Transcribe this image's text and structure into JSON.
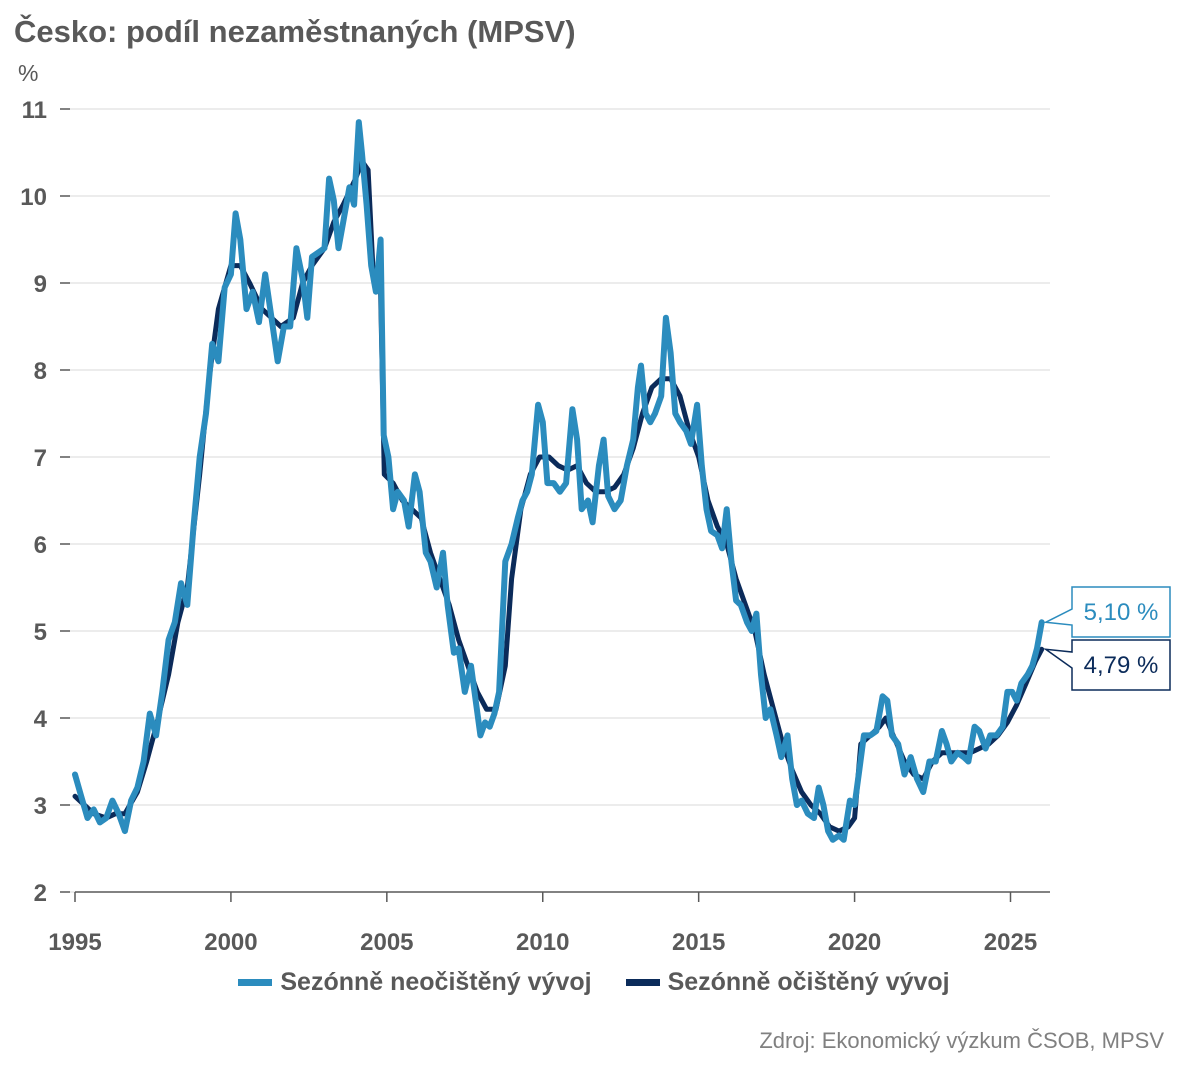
{
  "title": "Česko: podíl nezaměstnaných (MPSV)",
  "unit": "%",
  "source": "Zdroj: Ekonomický výzkum ČSOB, MPSV",
  "colors": {
    "unadjusted": "#2B8CBE",
    "adjusted": "#0B2B5A",
    "grid": "#D9D9D9",
    "axis": "#595959"
  },
  "chart_data": {
    "type": "line",
    "title": "Česko: podíl nezaměstnaných (MPSV)",
    "ylabel": "%",
    "xlabel": "",
    "ylim": [
      2,
      11
    ],
    "xlim": [
      1995,
      2026.2
    ],
    "yticks": [
      2,
      3,
      4,
      5,
      6,
      7,
      8,
      9,
      10,
      11
    ],
    "xticks": [
      1995,
      2000,
      2005,
      2010,
      2015,
      2020,
      2025
    ],
    "grid": true,
    "legend": "bottom",
    "series": [
      {
        "name": "Sezónně neočištěný vývoj",
        "color": "#2B8CBE",
        "points": [
          [
            1995.0,
            3.35
          ],
          [
            1995.2,
            3.1
          ],
          [
            1995.4,
            2.85
          ],
          [
            1995.6,
            2.95
          ],
          [
            1995.8,
            2.8
          ],
          [
            1996.0,
            2.85
          ],
          [
            1996.2,
            3.05
          ],
          [
            1996.4,
            2.9
          ],
          [
            1996.6,
            2.7
          ],
          [
            1996.8,
            3.05
          ],
          [
            1997.0,
            3.2
          ],
          [
            1997.2,
            3.5
          ],
          [
            1997.4,
            4.05
          ],
          [
            1997.6,
            3.8
          ],
          [
            1997.8,
            4.3
          ],
          [
            1998.0,
            4.9
          ],
          [
            1998.2,
            5.1
          ],
          [
            1998.4,
            5.55
          ],
          [
            1998.6,
            5.3
          ],
          [
            1998.8,
            6.2
          ],
          [
            1999.0,
            7.0
          ],
          [
            1999.2,
            7.5
          ],
          [
            1999.4,
            8.3
          ],
          [
            1999.6,
            8.1
          ],
          [
            1999.8,
            8.95
          ],
          [
            2000.0,
            9.1
          ],
          [
            2000.15,
            9.8
          ],
          [
            2000.3,
            9.5
          ],
          [
            2000.5,
            8.7
          ],
          [
            2000.7,
            8.9
          ],
          [
            2000.9,
            8.55
          ],
          [
            2001.1,
            9.1
          ],
          [
            2001.3,
            8.6
          ],
          [
            2001.5,
            8.1
          ],
          [
            2001.7,
            8.5
          ],
          [
            2001.9,
            8.5
          ],
          [
            2002.1,
            9.4
          ],
          [
            2002.3,
            9.05
          ],
          [
            2002.45,
            8.6
          ],
          [
            2002.6,
            9.3
          ],
          [
            2002.8,
            9.35
          ],
          [
            2003.0,
            9.4
          ],
          [
            2003.15,
            10.2
          ],
          [
            2003.3,
            9.95
          ],
          [
            2003.45,
            9.4
          ],
          [
            2003.6,
            9.7
          ],
          [
            2003.8,
            10.1
          ],
          [
            2003.95,
            9.9
          ],
          [
            2004.1,
            10.85
          ],
          [
            2004.2,
            10.5
          ],
          [
            2004.35,
            9.9
          ],
          [
            2004.5,
            9.2
          ],
          [
            2004.65,
            8.9
          ],
          [
            2004.8,
            9.5
          ],
          [
            2004.9,
            7.25
          ],
          [
            2005.05,
            7.0
          ],
          [
            2005.2,
            6.4
          ],
          [
            2005.35,
            6.6
          ],
          [
            2005.55,
            6.5
          ],
          [
            2005.7,
            6.2
          ],
          [
            2005.9,
            6.8
          ],
          [
            2006.05,
            6.6
          ],
          [
            2006.25,
            5.9
          ],
          [
            2006.4,
            5.8
          ],
          [
            2006.6,
            5.5
          ],
          [
            2006.8,
            5.9
          ],
          [
            2006.95,
            5.3
          ],
          [
            2007.15,
            4.75
          ],
          [
            2007.3,
            4.8
          ],
          [
            2007.5,
            4.3
          ],
          [
            2007.7,
            4.6
          ],
          [
            2007.85,
            4.2
          ],
          [
            2008.0,
            3.8
          ],
          [
            2008.15,
            3.95
          ],
          [
            2008.3,
            3.9
          ],
          [
            2008.45,
            4.05
          ],
          [
            2008.6,
            4.3
          ],
          [
            2008.8,
            5.8
          ],
          [
            2009.0,
            6.0
          ],
          [
            2009.2,
            6.3
          ],
          [
            2009.35,
            6.5
          ],
          [
            2009.5,
            6.6
          ],
          [
            2009.65,
            6.8
          ],
          [
            2009.85,
            7.6
          ],
          [
            2010.0,
            7.4
          ],
          [
            2010.15,
            6.7
          ],
          [
            2010.35,
            6.7
          ],
          [
            2010.55,
            6.6
          ],
          [
            2010.75,
            6.7
          ],
          [
            2010.95,
            7.55
          ],
          [
            2011.1,
            7.2
          ],
          [
            2011.25,
            6.4
          ],
          [
            2011.45,
            6.5
          ],
          [
            2011.6,
            6.25
          ],
          [
            2011.8,
            6.9
          ],
          [
            2011.95,
            7.2
          ],
          [
            2012.1,
            6.55
          ],
          [
            2012.3,
            6.4
          ],
          [
            2012.5,
            6.5
          ],
          [
            2012.7,
            6.9
          ],
          [
            2012.9,
            7.2
          ],
          [
            2013.05,
            7.8
          ],
          [
            2013.15,
            8.05
          ],
          [
            2013.3,
            7.5
          ],
          [
            2013.45,
            7.4
          ],
          [
            2013.6,
            7.5
          ],
          [
            2013.8,
            7.7
          ],
          [
            2013.95,
            8.6
          ],
          [
            2014.1,
            8.2
          ],
          [
            2014.25,
            7.5
          ],
          [
            2014.4,
            7.4
          ],
          [
            2014.6,
            7.3
          ],
          [
            2014.75,
            7.15
          ],
          [
            2014.95,
            7.6
          ],
          [
            2015.1,
            6.9
          ],
          [
            2015.25,
            6.4
          ],
          [
            2015.4,
            6.15
          ],
          [
            2015.6,
            6.1
          ],
          [
            2015.75,
            5.95
          ],
          [
            2015.9,
            6.4
          ],
          [
            2016.05,
            5.8
          ],
          [
            2016.2,
            5.35
          ],
          [
            2016.35,
            5.3
          ],
          [
            2016.55,
            5.1
          ],
          [
            2016.7,
            5.0
          ],
          [
            2016.85,
            5.2
          ],
          [
            2017.0,
            4.5
          ],
          [
            2017.15,
            4.0
          ],
          [
            2017.3,
            4.1
          ],
          [
            2017.5,
            3.8
          ],
          [
            2017.65,
            3.55
          ],
          [
            2017.85,
            3.8
          ],
          [
            2018.0,
            3.3
          ],
          [
            2018.15,
            3.0
          ],
          [
            2018.3,
            3.05
          ],
          [
            2018.5,
            2.9
          ],
          [
            2018.7,
            2.85
          ],
          [
            2018.85,
            3.2
          ],
          [
            2019.0,
            3.0
          ],
          [
            2019.15,
            2.7
          ],
          [
            2019.3,
            2.6
          ],
          [
            2019.5,
            2.65
          ],
          [
            2019.65,
            2.6
          ],
          [
            2019.85,
            3.05
          ],
          [
            2020.0,
            3.0
          ],
          [
            2020.15,
            3.4
          ],
          [
            2020.3,
            3.8
          ],
          [
            2020.5,
            3.8
          ],
          [
            2020.7,
            3.85
          ],
          [
            2020.9,
            4.25
          ],
          [
            2021.05,
            4.2
          ],
          [
            2021.2,
            3.8
          ],
          [
            2021.4,
            3.7
          ],
          [
            2021.6,
            3.35
          ],
          [
            2021.8,
            3.55
          ],
          [
            2022.0,
            3.3
          ],
          [
            2022.2,
            3.15
          ],
          [
            2022.4,
            3.5
          ],
          [
            2022.6,
            3.5
          ],
          [
            2022.8,
            3.85
          ],
          [
            2022.95,
            3.7
          ],
          [
            2023.1,
            3.5
          ],
          [
            2023.3,
            3.6
          ],
          [
            2023.5,
            3.55
          ],
          [
            2023.65,
            3.5
          ],
          [
            2023.85,
            3.9
          ],
          [
            2024.0,
            3.85
          ],
          [
            2024.2,
            3.65
          ],
          [
            2024.35,
            3.8
          ],
          [
            2024.55,
            3.8
          ],
          [
            2024.75,
            3.9
          ],
          [
            2024.9,
            4.3
          ],
          [
            2025.05,
            4.3
          ],
          [
            2025.2,
            4.2
          ],
          [
            2025.35,
            4.4
          ],
          [
            2025.55,
            4.5
          ],
          [
            2025.7,
            4.6
          ],
          [
            2025.85,
            4.8
          ],
          [
            2026.0,
            5.1
          ]
        ]
      },
      {
        "name": "Sezónně očištěný vývoj",
        "color": "#0B2B5A",
        "points": [
          [
            1995.0,
            3.1
          ],
          [
            1995.3,
            3.0
          ],
          [
            1995.6,
            2.9
          ],
          [
            1996.0,
            2.85
          ],
          [
            1996.3,
            2.9
          ],
          [
            1996.6,
            2.9
          ],
          [
            1997.0,
            3.15
          ],
          [
            1997.3,
            3.5
          ],
          [
            1997.6,
            3.9
          ],
          [
            1998.0,
            4.5
          ],
          [
            1998.3,
            5.1
          ],
          [
            1998.6,
            5.5
          ],
          [
            1999.0,
            6.8
          ],
          [
            1999.3,
            7.9
          ],
          [
            1999.6,
            8.7
          ],
          [
            2000.0,
            9.2
          ],
          [
            2000.3,
            9.2
          ],
          [
            2000.6,
            9.0
          ],
          [
            2001.0,
            8.7
          ],
          [
            2001.3,
            8.6
          ],
          [
            2001.6,
            8.5
          ],
          [
            2002.0,
            8.6
          ],
          [
            2002.3,
            9.0
          ],
          [
            2002.6,
            9.2
          ],
          [
            2003.0,
            9.4
          ],
          [
            2003.3,
            9.7
          ],
          [
            2003.6,
            9.9
          ],
          [
            2004.0,
            10.2
          ],
          [
            2004.2,
            10.4
          ],
          [
            2004.4,
            10.3
          ],
          [
            2004.55,
            9.2
          ],
          [
            2004.8,
            8.9
          ],
          [
            2004.92,
            6.8
          ],
          [
            2005.2,
            6.7
          ],
          [
            2005.5,
            6.5
          ],
          [
            2005.8,
            6.4
          ],
          [
            2006.1,
            6.3
          ],
          [
            2006.4,
            5.9
          ],
          [
            2006.7,
            5.6
          ],
          [
            2007.0,
            5.3
          ],
          [
            2007.3,
            4.9
          ],
          [
            2007.6,
            4.6
          ],
          [
            2007.9,
            4.3
          ],
          [
            2008.2,
            4.1
          ],
          [
            2008.5,
            4.1
          ],
          [
            2008.8,
            4.6
          ],
          [
            2009.0,
            5.6
          ],
          [
            2009.3,
            6.4
          ],
          [
            2009.6,
            6.8
          ],
          [
            2009.9,
            7.0
          ],
          [
            2010.2,
            7.0
          ],
          [
            2010.5,
            6.9
          ],
          [
            2010.8,
            6.85
          ],
          [
            2011.1,
            6.9
          ],
          [
            2011.4,
            6.7
          ],
          [
            2011.7,
            6.6
          ],
          [
            2012.0,
            6.6
          ],
          [
            2012.3,
            6.65
          ],
          [
            2012.6,
            6.8
          ],
          [
            2012.9,
            7.1
          ],
          [
            2013.2,
            7.5
          ],
          [
            2013.5,
            7.8
          ],
          [
            2013.8,
            7.9
          ],
          [
            2014.1,
            7.9
          ],
          [
            2014.4,
            7.7
          ],
          [
            2014.7,
            7.3
          ],
          [
            2015.0,
            7.0
          ],
          [
            2015.3,
            6.5
          ],
          [
            2015.6,
            6.2
          ],
          [
            2015.9,
            6.0
          ],
          [
            2016.2,
            5.6
          ],
          [
            2016.5,
            5.3
          ],
          [
            2016.8,
            5.0
          ],
          [
            2017.1,
            4.5
          ],
          [
            2017.4,
            4.1
          ],
          [
            2017.7,
            3.7
          ],
          [
            2018.0,
            3.4
          ],
          [
            2018.3,
            3.15
          ],
          [
            2018.6,
            3.0
          ],
          [
            2018.9,
            2.9
          ],
          [
            2019.2,
            2.75
          ],
          [
            2019.5,
            2.7
          ],
          [
            2019.8,
            2.75
          ],
          [
            2020.0,
            2.85
          ],
          [
            2020.2,
            3.7
          ],
          [
            2020.5,
            3.8
          ],
          [
            2020.8,
            3.9
          ],
          [
            2021.0,
            4.0
          ],
          [
            2021.3,
            3.75
          ],
          [
            2021.6,
            3.5
          ],
          [
            2021.9,
            3.35
          ],
          [
            2022.2,
            3.3
          ],
          [
            2022.5,
            3.5
          ],
          [
            2022.8,
            3.6
          ],
          [
            2023.1,
            3.6
          ],
          [
            2023.4,
            3.6
          ],
          [
            2023.7,
            3.6
          ],
          [
            2024.0,
            3.65
          ],
          [
            2024.3,
            3.7
          ],
          [
            2024.6,
            3.8
          ],
          [
            2024.9,
            3.95
          ],
          [
            2025.2,
            4.15
          ],
          [
            2025.5,
            4.4
          ],
          [
            2025.8,
            4.65
          ],
          [
            2026.0,
            4.79
          ]
        ]
      }
    ],
    "annotations": [
      {
        "series": "Sezónně neočištěný vývoj",
        "label": "5,10 %",
        "value": 5.1
      },
      {
        "series": "Sezónně očištěný vývoj",
        "label": "4,79 %",
        "value": 4.79
      }
    ]
  }
}
